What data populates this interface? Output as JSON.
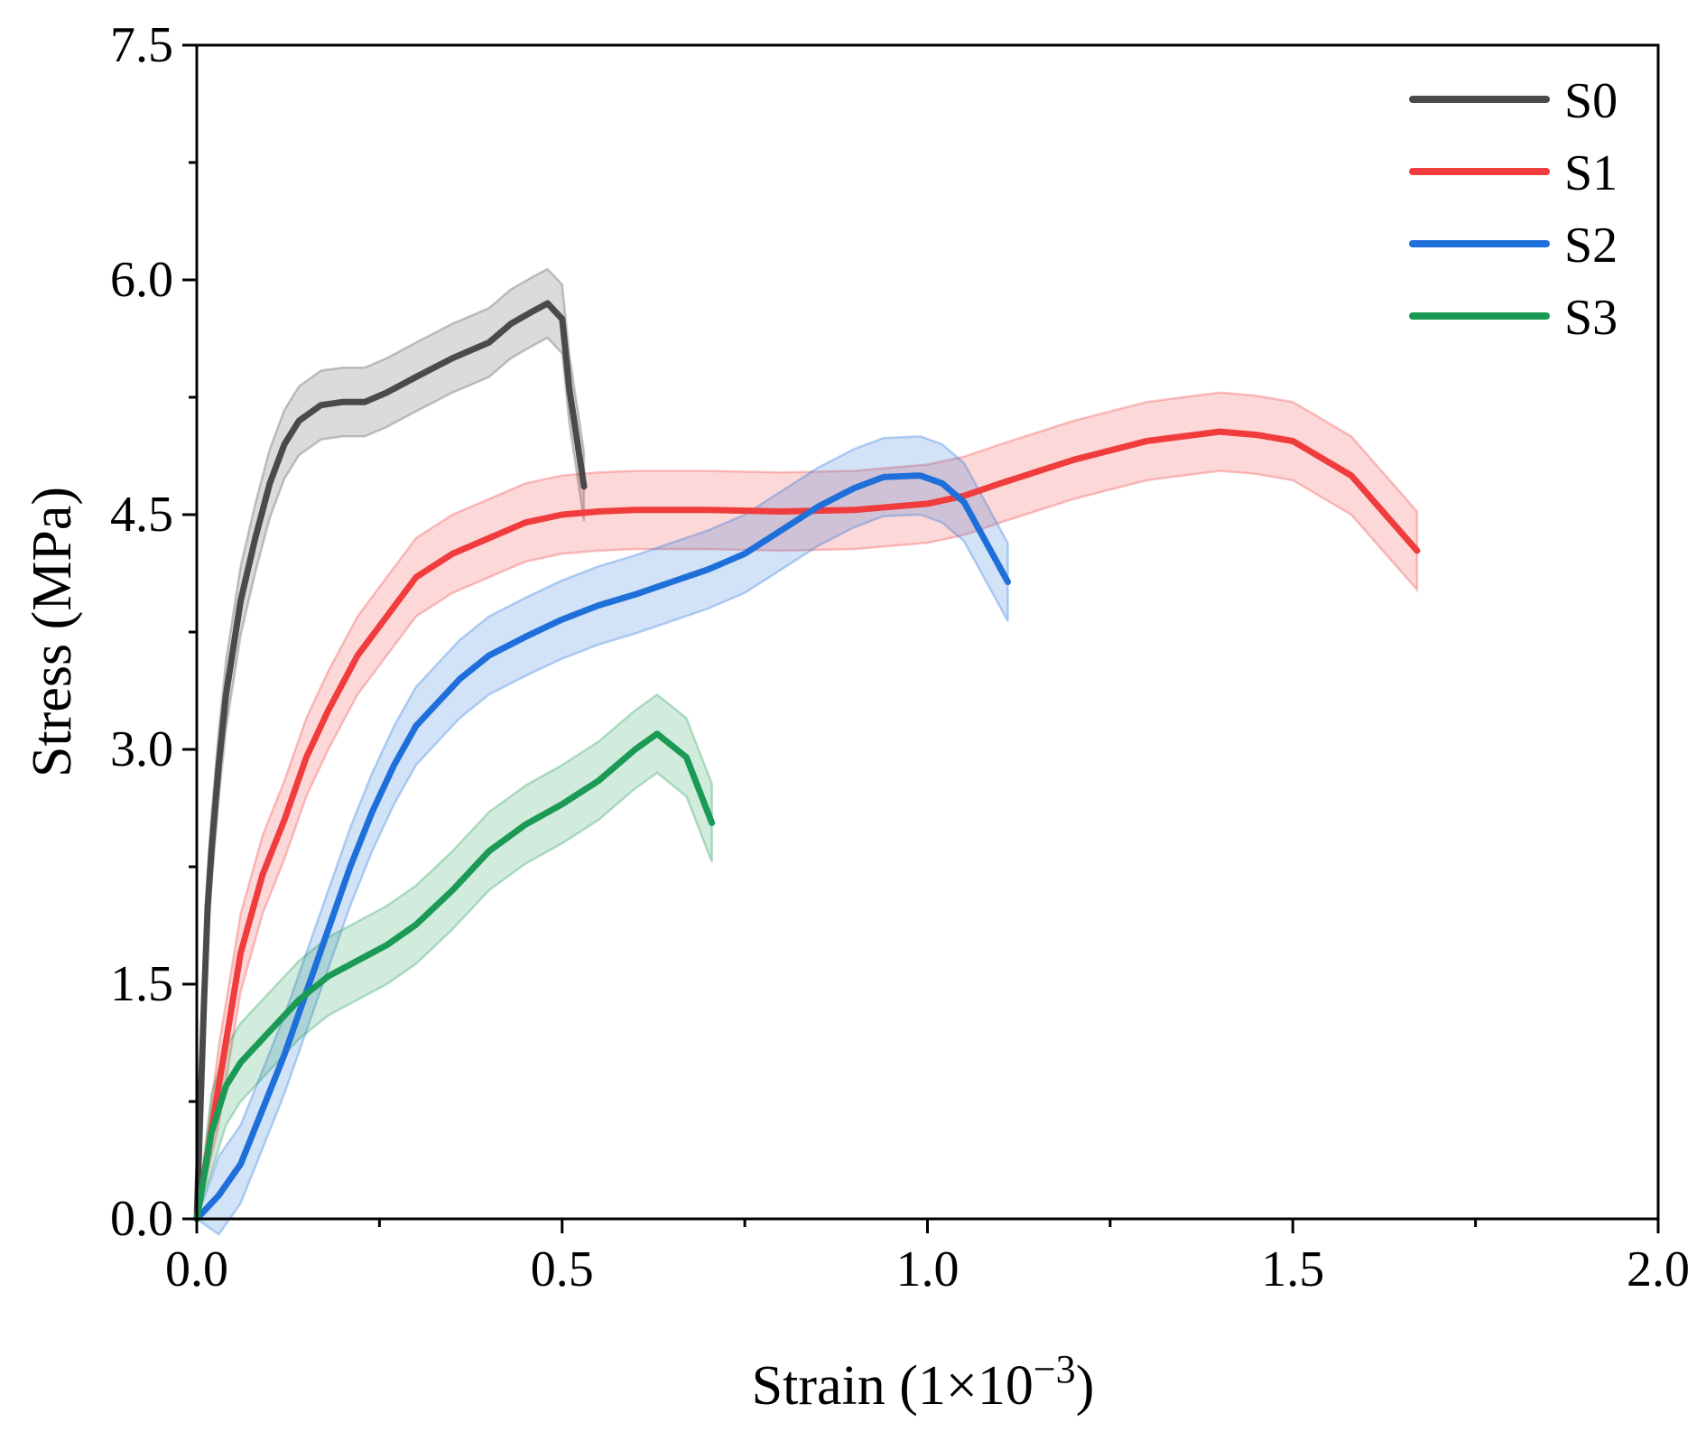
{
  "chart_data": {
    "type": "line",
    "title": "",
    "xlabel": "Strain (1×10",
    "xlabel_exponent": "−3",
    "xlabel_close": ")",
    "ylabel": "Stress (MPa)",
    "xlim": [
      0,
      2.0
    ],
    "ylim": [
      0,
      7.5
    ],
    "xticks": [
      0.0,
      0.5,
      1.0,
      1.5,
      2.0
    ],
    "xtick_labels": [
      "0.0",
      "0.5",
      "1.0",
      "1.5",
      "2.0"
    ],
    "xminor": [
      0.25,
      0.75,
      1.25,
      1.75
    ],
    "yticks": [
      0.0,
      1.5,
      3.0,
      4.5,
      6.0,
      7.5
    ],
    "ytick_labels": [
      "0.0",
      "1.5",
      "3.0",
      "4.5",
      "6.0",
      "7.5"
    ],
    "yminor": [
      0.75,
      2.25,
      3.75,
      5.25,
      6.75
    ],
    "legend_position": "top-right",
    "series": [
      {
        "name": "S0",
        "color": "#4a4a4a",
        "band_width": 0.22,
        "x": [
          0,
          0.005,
          0.01,
          0.015,
          0.02,
          0.03,
          0.04,
          0.05,
          0.06,
          0.08,
          0.1,
          0.12,
          0.14,
          0.17,
          0.2,
          0.23,
          0.26,
          0.3,
          0.35,
          0.4,
          0.43,
          0.46,
          0.48,
          0.5,
          0.51,
          0.53
        ],
        "y": [
          0,
          0.7,
          1.4,
          2.0,
          2.35,
          2.9,
          3.35,
          3.65,
          3.95,
          4.35,
          4.7,
          4.95,
          5.1,
          5.2,
          5.22,
          5.22,
          5.28,
          5.38,
          5.5,
          5.6,
          5.72,
          5.8,
          5.85,
          5.75,
          5.3,
          4.68
        ]
      },
      {
        "name": "S1",
        "color": "#f03c3c",
        "band_width": 0.25,
        "x": [
          0,
          0.03,
          0.06,
          0.09,
          0.12,
          0.15,
          0.18,
          0.22,
          0.26,
          0.3,
          0.35,
          0.4,
          0.45,
          0.5,
          0.55,
          0.6,
          0.7,
          0.8,
          0.9,
          1.0,
          1.05,
          1.1,
          1.2,
          1.3,
          1.4,
          1.45,
          1.5,
          1.58,
          1.67
        ],
        "y": [
          0,
          0.85,
          1.7,
          2.2,
          2.55,
          2.95,
          3.25,
          3.6,
          3.85,
          4.1,
          4.25,
          4.35,
          4.45,
          4.5,
          4.52,
          4.53,
          4.53,
          4.52,
          4.53,
          4.57,
          4.62,
          4.7,
          4.85,
          4.97,
          5.03,
          5.01,
          4.97,
          4.75,
          4.27
        ]
      },
      {
        "name": "S2",
        "color": "#1e6fd9",
        "band_width": 0.25,
        "x": [
          0,
          0.03,
          0.06,
          0.09,
          0.12,
          0.15,
          0.18,
          0.21,
          0.24,
          0.27,
          0.3,
          0.33,
          0.36,
          0.4,
          0.45,
          0.5,
          0.55,
          0.6,
          0.65,
          0.7,
          0.75,
          0.8,
          0.85,
          0.9,
          0.94,
          0.99,
          1.02,
          1.05,
          1.11
        ],
        "y": [
          0,
          0.15,
          0.35,
          0.7,
          1.05,
          1.45,
          1.85,
          2.25,
          2.6,
          2.9,
          3.15,
          3.3,
          3.45,
          3.6,
          3.72,
          3.83,
          3.92,
          3.99,
          4.07,
          4.15,
          4.25,
          4.4,
          4.55,
          4.67,
          4.74,
          4.75,
          4.7,
          4.58,
          4.07
        ]
      },
      {
        "name": "S3",
        "color": "#1a9a55",
        "band_width": 0.25,
        "x": [
          0,
          0.02,
          0.04,
          0.06,
          0.1,
          0.14,
          0.18,
          0.22,
          0.26,
          0.3,
          0.35,
          0.4,
          0.45,
          0.5,
          0.55,
          0.6,
          0.63,
          0.67,
          0.705
        ],
        "y": [
          0,
          0.55,
          0.85,
          1.0,
          1.2,
          1.4,
          1.55,
          1.65,
          1.75,
          1.88,
          2.1,
          2.35,
          2.52,
          2.65,
          2.8,
          3.0,
          3.1,
          2.95,
          2.53
        ]
      }
    ]
  }
}
